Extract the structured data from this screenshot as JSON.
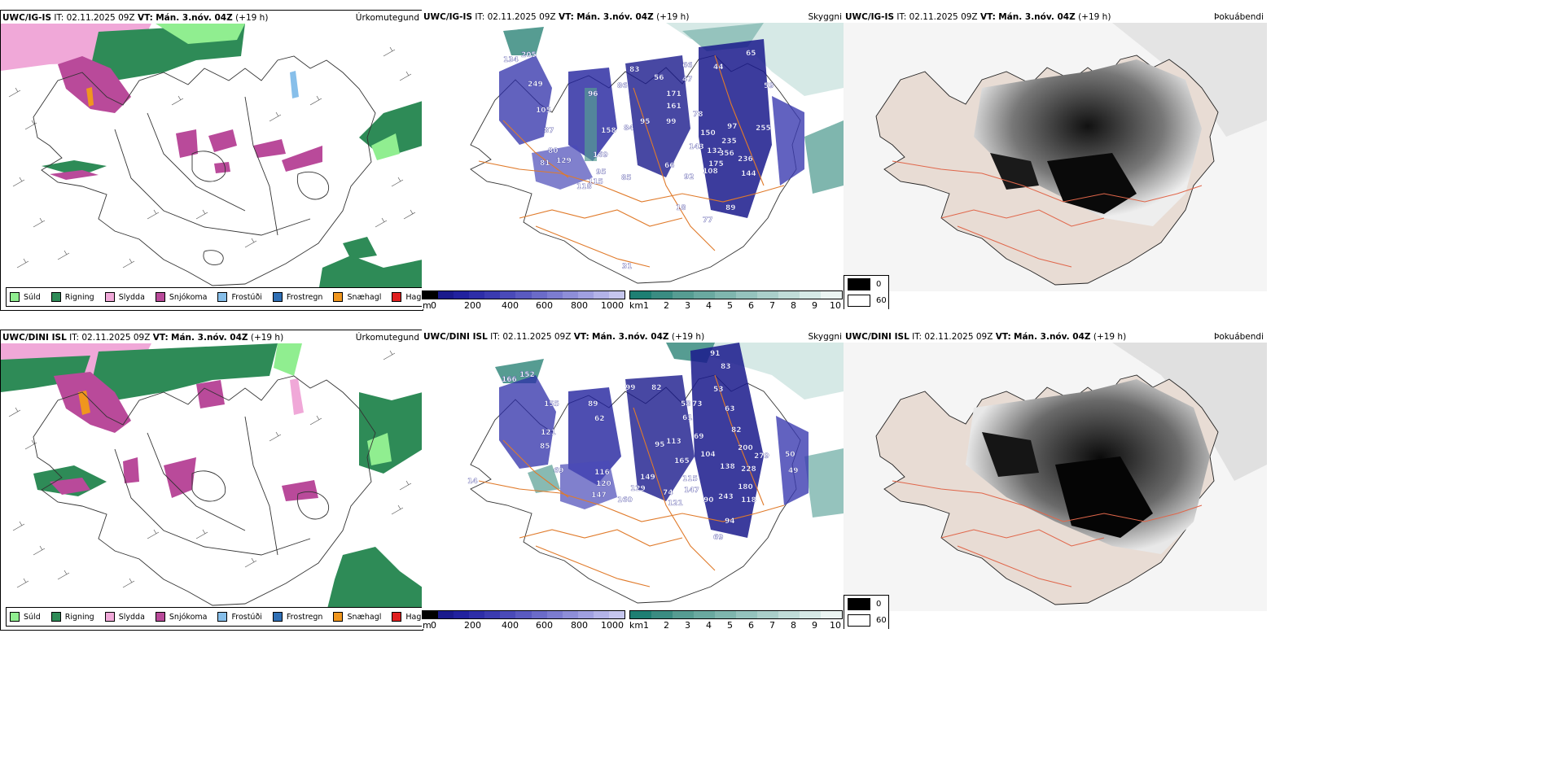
{
  "header_common": {
    "it_label": "IT:",
    "it_value": "02.11.2025 09Z",
    "vt_label": "VT:",
    "vt_value": "Mán. 3.nóv. 04Z",
    "lead": "(+19 h)"
  },
  "rows": [
    {
      "model": "UWC/IG-IS",
      "cloud_labels": [
        "134",
        "205",
        "249",
        "105",
        "87",
        "80",
        "81",
        "129",
        "169",
        "95",
        "115",
        "118",
        "85",
        "96",
        "86",
        "158",
        "84",
        "95",
        "99",
        "161",
        "78",
        "150",
        "97",
        "143",
        "132",
        "356",
        "235",
        "255",
        "236",
        "108",
        "92",
        "175",
        "144",
        "66",
        "44",
        "47",
        "66",
        "56",
        "83",
        "65",
        "59",
        "171",
        "89",
        "77",
        "18",
        "31"
      ]
    },
    {
      "model": "UWC/DINI ISL",
      "cloud_labels": [
        "166",
        "152",
        "155",
        "89",
        "62",
        "121",
        "85",
        "69",
        "116",
        "120",
        "129",
        "147",
        "160",
        "99",
        "82",
        "149",
        "58",
        "61",
        "73",
        "113",
        "69",
        "165",
        "104",
        "138",
        "200",
        "279",
        "228",
        "180",
        "118",
        "115",
        "90",
        "243",
        "147",
        "74",
        "121",
        "94",
        "91",
        "83",
        "53",
        "63",
        "82",
        "50",
        "49",
        "69",
        "95",
        "14"
      ]
    }
  ],
  "panel_titles": {
    "precip": "Úrkomutegund",
    "cloud": "Skyggni",
    "fog": "Þokuábendi"
  },
  "precip_legend": [
    {
      "label": "Súld",
      "color": "#90ee90"
    },
    {
      "label": "Rigning",
      "color": "#2e8b57"
    },
    {
      "label": "Slydda",
      "color": "#f0a8d8"
    },
    {
      "label": "Snjókoma",
      "color": "#b94a9a"
    },
    {
      "label": "Frostúði",
      "color": "#87bfea"
    },
    {
      "label": "Frostregn",
      "color": "#2f6fb5"
    },
    {
      "label": "Snæhagl",
      "color": "#f0961e"
    },
    {
      "label": "Haglél",
      "color": "#e02020"
    }
  ],
  "colorbar_m": {
    "unit": "m",
    "labels": [
      "0",
      "200",
      "400",
      "600",
      "800",
      "1000"
    ],
    "colors": [
      "#000000",
      "#1a1a8c",
      "#22229e",
      "#2e2ea8",
      "#3b3bb0",
      "#4a4ab8",
      "#5a5ac0",
      "#6b6bc8",
      "#7c7cd0",
      "#8e8ed8",
      "#a0a0e0",
      "#b3b3e8",
      "#c6c6ee"
    ]
  },
  "colorbar_km": {
    "unit": "km",
    "labels": [
      "1",
      "2",
      "3",
      "4",
      "5",
      "6",
      "7",
      "8",
      "9",
      "10"
    ],
    "colors": [
      "#1e7f73",
      "#3a8c82",
      "#569c92",
      "#6aa9a0",
      "#7fb6ae",
      "#95c3bd",
      "#aacfca",
      "#c0dcd8",
      "#d6e9e6",
      "#ebf4f2"
    ]
  },
  "fog_legend": [
    {
      "label": "0",
      "color": "#000000"
    },
    {
      "label": "60",
      "color": "#ffffff"
    }
  ],
  "icons": {
    "wind_barbs": "wind-barb-icon",
    "country_outline": "iceland-outline-icon"
  }
}
